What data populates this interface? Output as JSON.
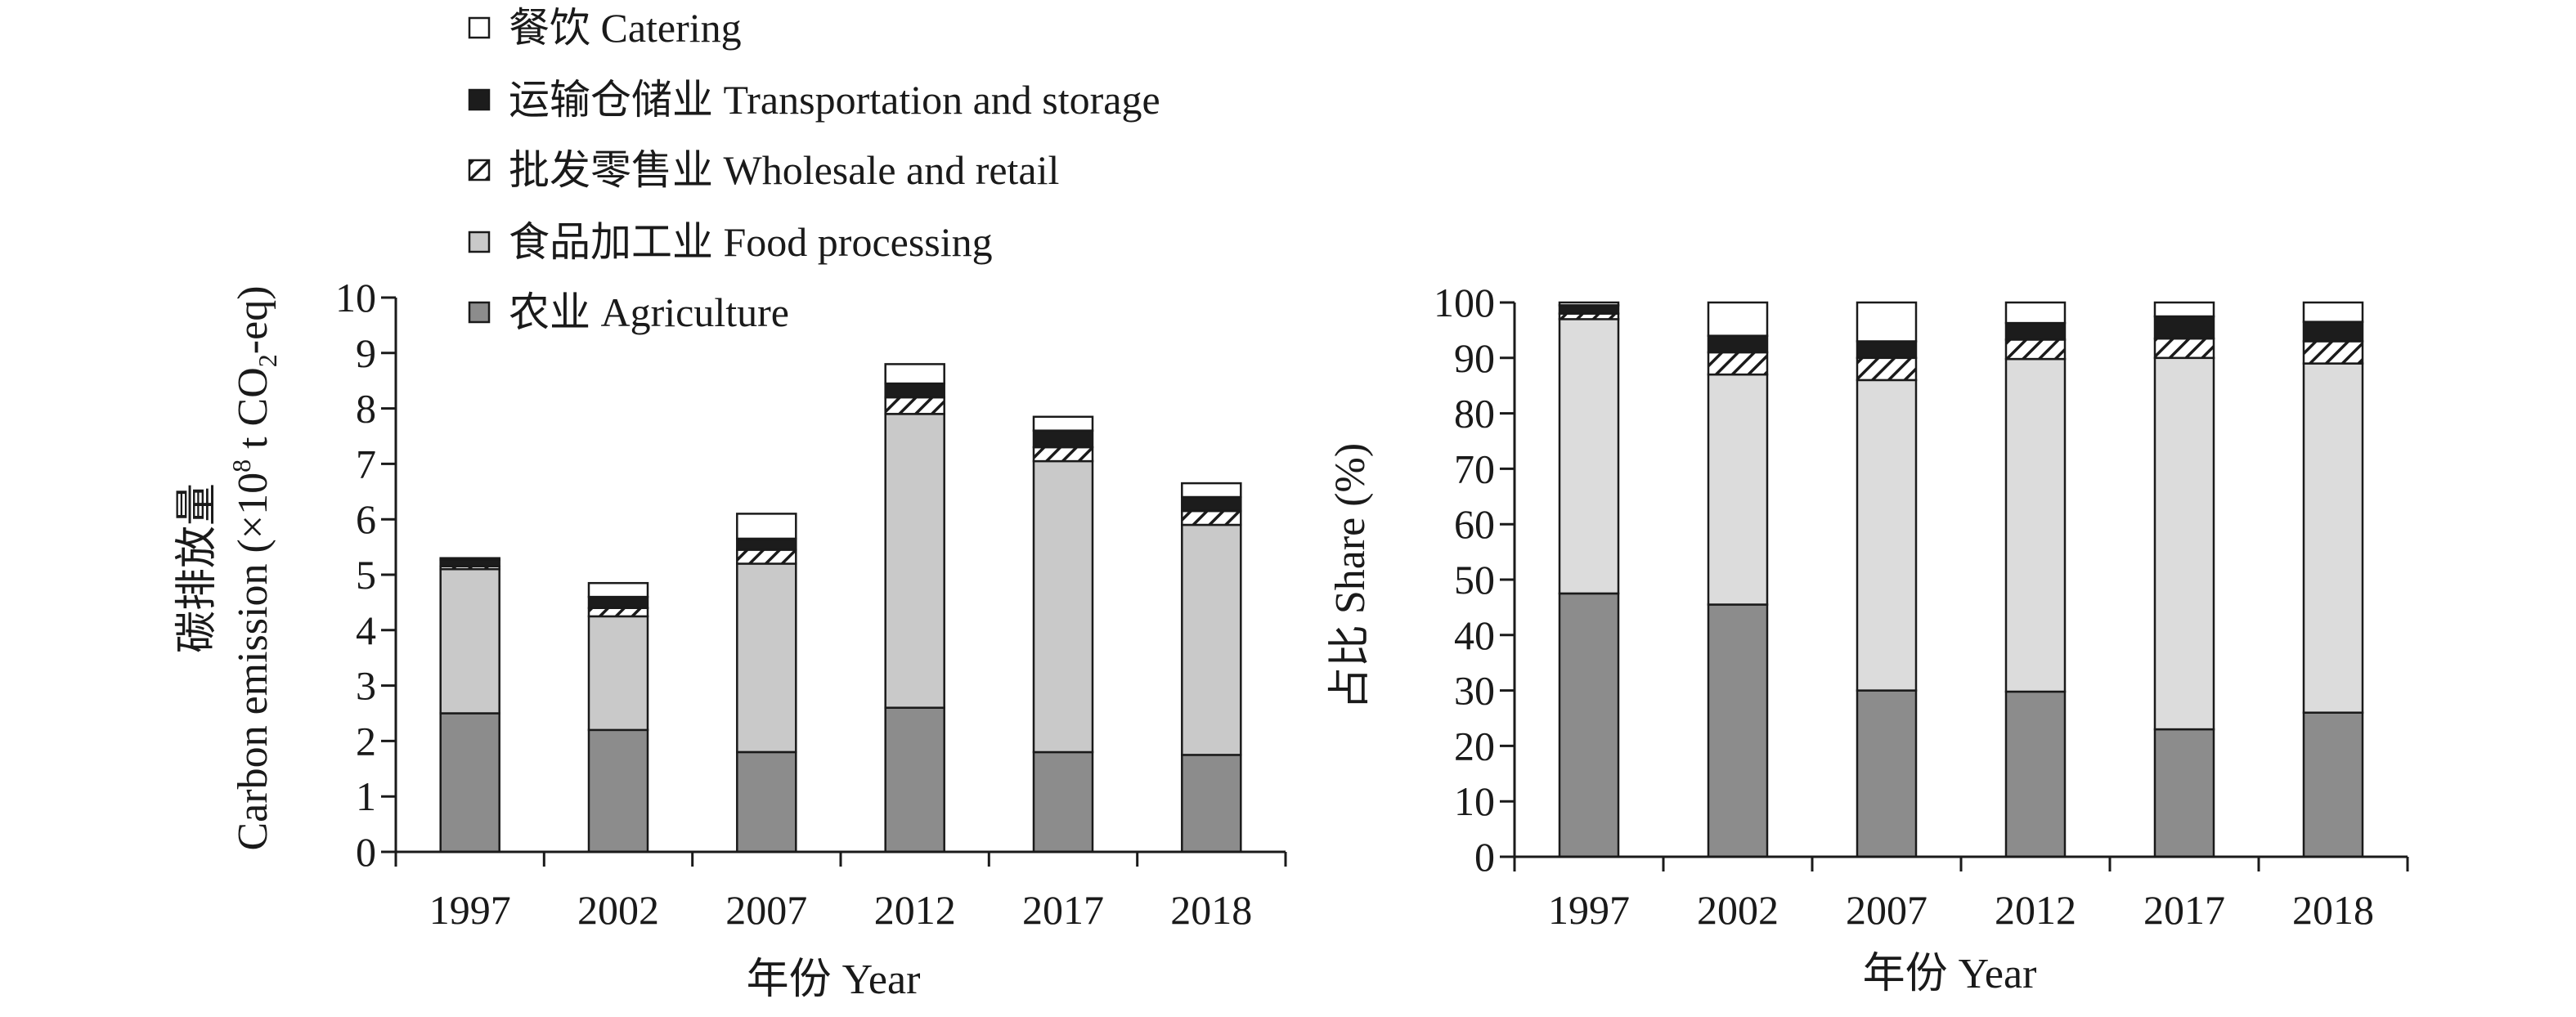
{
  "colors": {
    "agriculture": "#8c8c8c",
    "food_processing_left": "#c9c9c9",
    "food_processing_right": "#dcdcdc",
    "wholesale_retail": "hatch-diagonal",
    "transportation_storage": "#1c1c1c",
    "catering": "#ffffff"
  },
  "legend": [
    {
      "key": "catering",
      "label": "餐饮 Catering"
    },
    {
      "key": "transportation_storage",
      "label": "运输仓储业 Transportation and storage"
    },
    {
      "key": "wholesale_retail",
      "label": "批发零售业 Wholesale and retail"
    },
    {
      "key": "food_processing",
      "label": "食品加工业 Food processing"
    },
    {
      "key": "agriculture",
      "label": "农业 Agriculture"
    }
  ],
  "chart_data": [
    {
      "type": "bar",
      "stacked": true,
      "categories": [
        "1997",
        "2002",
        "2007",
        "2012",
        "2017",
        "2018"
      ],
      "series": [
        {
          "name": "农业 Agriculture",
          "key": "agriculture",
          "values": [
            2.5,
            2.2,
            1.8,
            2.6,
            1.8,
            1.75
          ]
        },
        {
          "name": "食品加工业 Food processing",
          "key": "food_processing",
          "values": [
            2.6,
            2.05,
            3.4,
            5.3,
            5.25,
            4.15
          ]
        },
        {
          "name": "批发零售业 Wholesale and retail",
          "key": "wholesale_retail",
          "values": [
            0.05,
            0.15,
            0.25,
            0.3,
            0.25,
            0.25
          ]
        },
        {
          "name": "运输仓储业 Transportation and storage",
          "key": "transportation_storage",
          "values": [
            0.12,
            0.2,
            0.2,
            0.25,
            0.3,
            0.25
          ]
        },
        {
          "name": "餐饮 Catering",
          "key": "catering",
          "values": [
            0.03,
            0.25,
            0.45,
            0.35,
            0.25,
            0.25
          ]
        }
      ],
      "xlabel": "年份 Year",
      "ylabel_line1": "碳排放量",
      "ylabel_line2_prefix": "Carbon emission (×10",
      "ylabel_sup": "8",
      "ylabel_mid": " t CO",
      "ylabel_sub": "2",
      "ylabel_suffix": "-eq)",
      "ylim": [
        0,
        10
      ],
      "yticks": [
        "0",
        "1",
        "2",
        "3",
        "4",
        "5",
        "6",
        "7",
        "8",
        "9",
        "10"
      ],
      "grid": false
    },
    {
      "type": "bar",
      "stacked": true,
      "categories": [
        "1997",
        "2002",
        "2007",
        "2012",
        "2017",
        "2018"
      ],
      "series": [
        {
          "name": "农业 Agriculture",
          "key": "agriculture",
          "values": [
            47.5,
            45.5,
            30,
            29.8,
            23,
            26
          ]
        },
        {
          "name": "食品加工业 Food processing",
          "key": "food_processing",
          "values": [
            49.5,
            41.5,
            56,
            60,
            67,
            63
          ]
        },
        {
          "name": "批发零售业 Wholesale and retail",
          "key": "wholesale_retail",
          "values": [
            1,
            4,
            4,
            3.5,
            3.5,
            4
          ]
        },
        {
          "name": "运输仓储业 Transportation and storage",
          "key": "transportation_storage",
          "values": [
            1.5,
            3,
            3,
            3,
            4,
            3.5
          ]
        },
        {
          "name": "餐饮 Catering",
          "key": "catering",
          "values": [
            0.5,
            6,
            7,
            3.7,
            2.5,
            3.5
          ]
        }
      ],
      "xlabel": "年份 Year",
      "ylabel": "占比 Share (%)",
      "ylim": [
        0,
        100
      ],
      "yticks": [
        "0",
        "10",
        "20",
        "30",
        "40",
        "50",
        "60",
        "70",
        "80",
        "90",
        "100"
      ],
      "grid": false
    }
  ]
}
